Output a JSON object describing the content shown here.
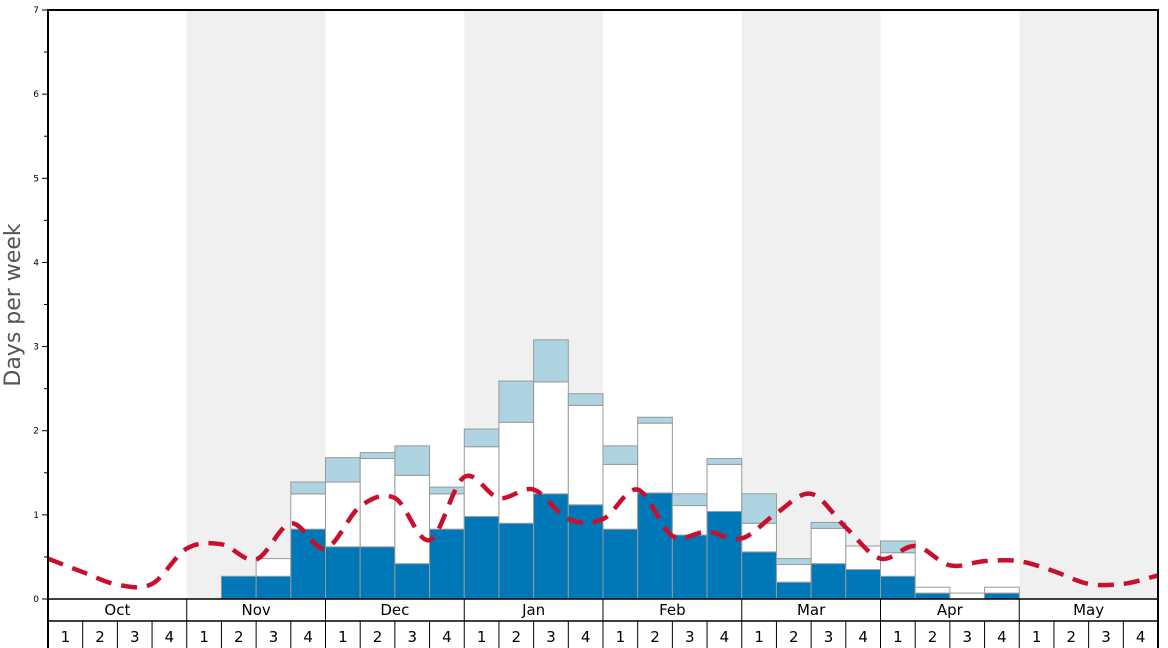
{
  "chart_data": {
    "type": "bar",
    "ylabel": "Days per week",
    "ylim": [
      0,
      7
    ],
    "y_ticks": [
      "0",
      "1",
      "2",
      "3",
      "4",
      "5",
      "6",
      "7"
    ],
    "months": [
      "Oct",
      "Nov",
      "Dec",
      "Jan",
      "Feb",
      "Mar",
      "Apr",
      "May"
    ],
    "weeks_per_month": 4,
    "week_labels": [
      "1",
      "2",
      "3",
      "4"
    ],
    "stacked": true,
    "series": [
      {
        "color": "#0077b6",
        "values": [
          0,
          0,
          0,
          0,
          0,
          0.27,
          0.27,
          0.83,
          0.62,
          0.62,
          0.42,
          0.83,
          0.98,
          0.9,
          1.25,
          1.12,
          0.83,
          1.26,
          0.76,
          1.04,
          0.56,
          0.2,
          0.42,
          0.35,
          0.27,
          0.07,
          0,
          0.07,
          0,
          0,
          0,
          0
        ]
      },
      {
        "color": "#ffffff",
        "values": [
          0,
          0,
          0,
          0,
          0,
          0,
          0.21,
          0.42,
          0.77,
          1.05,
          1.05,
          0.42,
          0.83,
          1.2,
          1.33,
          1.18,
          0.77,
          0.83,
          0.35,
          0.56,
          0.34,
          0.21,
          0.42,
          0.28,
          0.28,
          0.07,
          0.07,
          0.07,
          0,
          0,
          0,
          0
        ]
      },
      {
        "color": "#add4e0",
        "values": [
          0,
          0,
          0,
          0,
          0,
          0,
          0,
          0.14,
          0.29,
          0.07,
          0.35,
          0.08,
          0.21,
          0.49,
          0.5,
          0.14,
          0.22,
          0.07,
          0.14,
          0.07,
          0.35,
          0.07,
          0.07,
          0,
          0.14,
          0,
          0,
          0,
          0,
          0,
          0,
          0
        ]
      }
    ],
    "line": {
      "color": "#c8102e",
      "style": "dashed",
      "values": [
        0.48,
        0.32,
        0.17,
        0.18,
        0.6,
        0.65,
        0.47,
        0.9,
        0.6,
        1.1,
        1.2,
        0.7,
        1.45,
        1.2,
        1.3,
        0.95,
        0.95,
        1.3,
        0.75,
        0.8,
        0.72,
        1.02,
        1.25,
        0.85,
        0.48,
        0.63,
        0.4,
        0.45,
        0.45,
        0.33,
        0.18,
        0.18,
        0.28
      ]
    }
  }
}
